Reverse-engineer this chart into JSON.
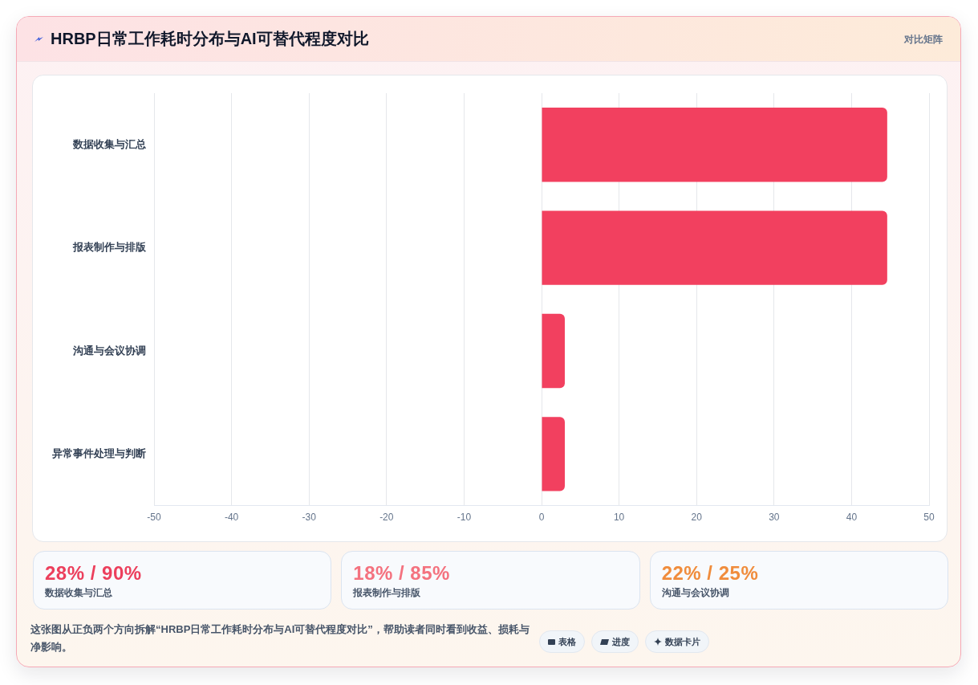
{
  "chart_data": [
    {
      "type": "bar",
      "orientation": "horizontal",
      "title": "HRBP日常工作耗时分布与AI可替代程度对比",
      "categories": [
        "数据收集与汇总",
        "报表制作与排版",
        "沟通与会议协调",
        "异常事件处理与判断"
      ],
      "values": [
        44.6,
        44.6,
        3,
        3
      ],
      "color": "#f2405f",
      "xlim": [
        -50,
        50
      ],
      "xticks": [
        -50,
        -40,
        -30,
        -20,
        -10,
        0,
        10,
        20,
        30,
        40,
        50
      ],
      "grid": "x",
      "legend": false,
      "annotations": [
        "对比矩阵",
        "这张图从正负两个方向拆解“HRBP日常工作耗时分布与AI可替代程度对比”，帮助读者同时看到收益、损耗与净影响。",
        "表格",
        "进度",
        "数据卡片"
      ]
    },
    {
      "type": "other",
      "categories": [
        "数据收集与汇总",
        "报表制作与排版",
        "沟通与会议协调"
      ],
      "value_labels": [
        "28% / 90%",
        "18% / 85%",
        "22% / 25%"
      ]
    }
  ]
}
